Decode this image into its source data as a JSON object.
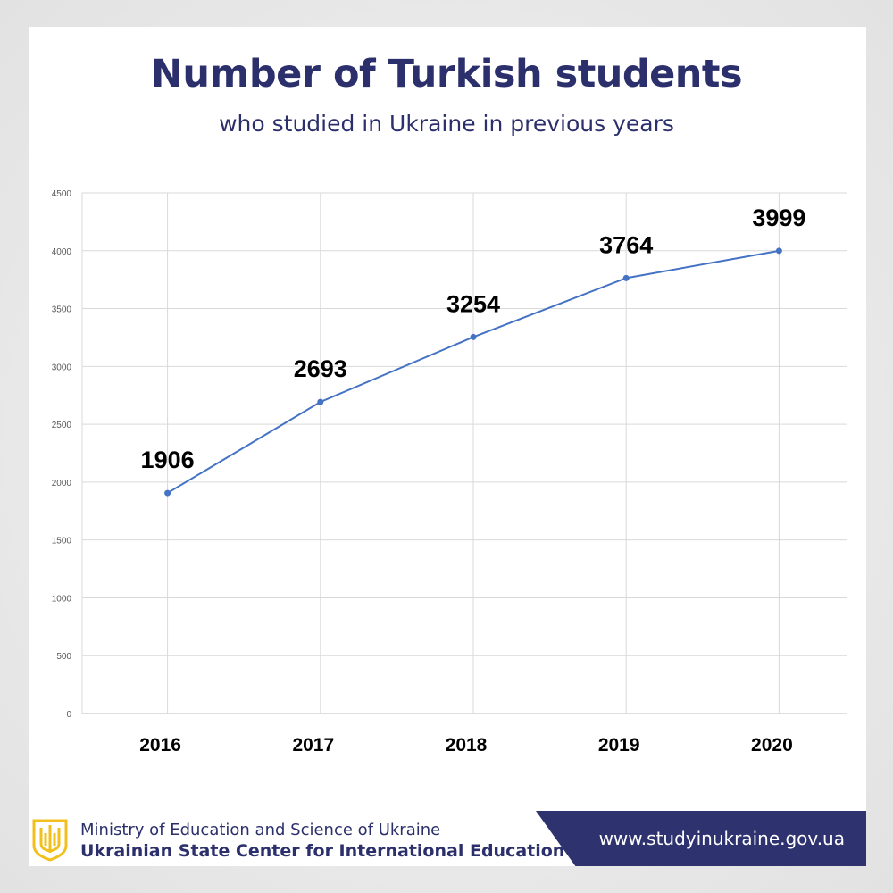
{
  "chart_data": {
    "type": "line",
    "title": "Number of Turkish students",
    "subtitle": "who studied in Ukraine in previous years",
    "categories": [
      "2016",
      "2017",
      "2018",
      "2019",
      "2020"
    ],
    "series": [
      {
        "values": [
          1906,
          2693,
          3254,
          3764,
          3999
        ]
      }
    ],
    "data_labels": [
      "1906",
      "2693",
      "3254",
      "3764",
      "3999"
    ],
    "y_ticks": [
      "0",
      "500",
      "1000",
      "1500",
      "2000",
      "2500",
      "3000",
      "3500",
      "4000",
      "4500"
    ],
    "ylim": [
      0,
      4500
    ],
    "grid": true,
    "line_color": "#4472c4"
  },
  "footer": {
    "ministry": "Ministry of Education and Science of Ukraine",
    "center": "Ukrainian State Center for International Education",
    "url": "www.studyinukraine.gov.ua"
  },
  "colors": {
    "title": "#2b2f6b",
    "band": "#2e3370",
    "emblem": "#f2c01e"
  }
}
